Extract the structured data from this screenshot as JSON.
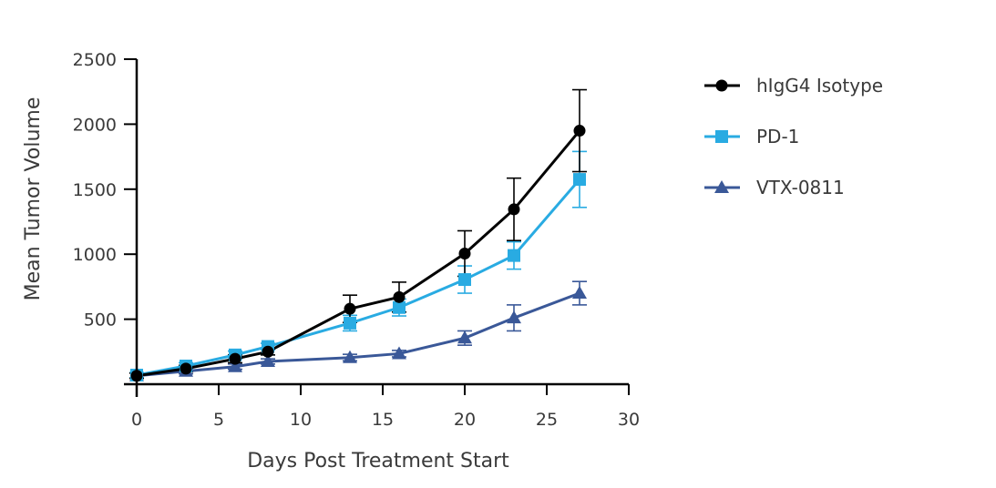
{
  "chart_data": {
    "type": "line",
    "title": "",
    "xlabel": "Days Post Treatment Start",
    "ylabel": "Mean Tumor Volume",
    "xlim": [
      0,
      30
    ],
    "ylim": [
      0,
      2500
    ],
    "x_ticks": [
      0,
      5,
      10,
      15,
      20,
      25,
      30
    ],
    "y_ticks": [
      500,
      1000,
      1500,
      2000,
      2500
    ],
    "grid": false,
    "legend_position": "right",
    "series": [
      {
        "name": "hIgG4 Isotype",
        "color": "#000000",
        "marker": "circle",
        "x": [
          0,
          3,
          6,
          8,
          13,
          16,
          20,
          23,
          27
        ],
        "y": [
          65,
          120,
          195,
          250,
          580,
          670,
          1005,
          1345,
          1950
        ],
        "error": [
          20,
          25,
          30,
          25,
          105,
          115,
          175,
          240,
          315
        ]
      },
      {
        "name": "PD-1",
        "color": "#29abe2",
        "marker": "square",
        "x": [
          0,
          3,
          6,
          8,
          13,
          16,
          20,
          23,
          27
        ],
        "y": [
          70,
          140,
          225,
          290,
          470,
          590,
          805,
          990,
          1575
        ],
        "error": [
          20,
          25,
          30,
          25,
          60,
          65,
          105,
          105,
          215
        ]
      },
      {
        "name": "VTX-0811",
        "color": "#3a5898",
        "marker": "triangle",
        "x": [
          0,
          3,
          6,
          8,
          13,
          16,
          20,
          23,
          27
        ],
        "y": [
          65,
          100,
          135,
          175,
          205,
          235,
          355,
          510,
          700
        ],
        "error": [
          20,
          20,
          20,
          20,
          25,
          25,
          55,
          100,
          90
        ]
      }
    ]
  }
}
